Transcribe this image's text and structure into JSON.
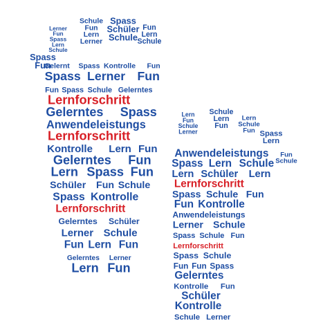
{
  "colors": {
    "background": "#ffffff",
    "primary_word": "#1f4ea3",
    "highlight_word": "#d81f26",
    "shadow": "#b8c4d8"
  },
  "left_foot": {
    "toes": [
      {
        "words": [
          "Lerner",
          "Fun",
          "Spass",
          "Lern",
          "Schule"
        ]
      },
      {
        "words": [
          "Schule",
          "Fun",
          "Lern",
          "Lerner"
        ]
      },
      {
        "words": [
          "Spass",
          "Schüler",
          "Schule"
        ]
      },
      {
        "words": [
          "Fun",
          "Lern",
          "Schule"
        ]
      },
      {
        "words": [
          "Spass",
          "Fun"
        ]
      }
    ],
    "rows": [
      {
        "words": [
          "Gelernt",
          "Spass",
          "Kontrolle",
          "Fun"
        ],
        "highlight": false
      },
      {
        "words": [
          "Spass",
          "Lerner",
          "Fun"
        ],
        "highlight": false
      },
      {
        "words": [
          "Fun",
          "Spass",
          "Schule",
          "Gelerntes"
        ],
        "highlight": false
      },
      {
        "words": [
          "Lernforschritt"
        ],
        "highlight": true
      },
      {
        "words": [
          "Gelerntes",
          "Spass"
        ],
        "highlight": false
      },
      {
        "words": [
          "Anwendeleistungs"
        ],
        "highlight": false
      },
      {
        "words": [
          "Lernforschritt"
        ],
        "highlight": true
      },
      {
        "words": [
          "Kontrolle",
          "Lern",
          "Fun"
        ],
        "highlight": false
      },
      {
        "words": [
          "Gelerntes",
          "Fun"
        ],
        "highlight": false
      },
      {
        "words": [
          "Lern",
          "Spass",
          "Fun"
        ],
        "highlight": false
      },
      {
        "words": [
          "Schüler",
          "Fun",
          "Schule"
        ],
        "highlight": false
      },
      {
        "words": [
          "Spass",
          "Kontrolle"
        ],
        "highlight": false
      },
      {
        "words": [
          "Lernforschritt"
        ],
        "highlight": true
      },
      {
        "words": [
          "Gelerntes",
          "Schüler"
        ],
        "highlight": false
      },
      {
        "words": [
          "Lerner",
          "Schule"
        ],
        "highlight": false
      },
      {
        "words": [
          "Fun",
          "Lern",
          "Fun"
        ],
        "highlight": false
      },
      {
        "words": [
          "Gelerntes",
          "Lerner"
        ],
        "highlight": false
      },
      {
        "words": [
          "Lern",
          "Fun"
        ],
        "highlight": false
      }
    ]
  },
  "right_foot": {
    "toes": [
      {
        "words": [
          "Lern",
          "Fun",
          "Schule",
          "Lerner"
        ]
      },
      {
        "words": [
          "Schule",
          "Lern",
          "Fun"
        ]
      },
      {
        "words": [
          "Lern",
          "Schule",
          "Fun"
        ]
      },
      {
        "words": [
          "Spass",
          "Lern"
        ]
      },
      {
        "words": [
          "Fun",
          "Schule"
        ]
      }
    ],
    "rows": [
      {
        "words": [
          "Anwendeleistungs"
        ],
        "highlight": false
      },
      {
        "words": [
          "Spass",
          "Lern",
          "Schule"
        ],
        "highlight": false
      },
      {
        "words": [
          "Lern",
          "Schüler",
          "Lern"
        ],
        "highlight": false
      },
      {
        "words": [
          "Lernforschritt"
        ],
        "highlight": true
      },
      {
        "words": [
          "Spass",
          "Schule",
          "Fun"
        ],
        "highlight": false
      },
      {
        "words": [
          "Fun",
          "Kontrolle"
        ],
        "highlight": false
      },
      {
        "words": [
          "Anwendeleistungs"
        ],
        "highlight": false
      },
      {
        "words": [
          "Lerner",
          "Schule"
        ],
        "highlight": false
      },
      {
        "words": [
          "Spass",
          "Schule",
          "Fun"
        ],
        "highlight": false
      },
      {
        "words": [
          "Lernforschritt"
        ],
        "highlight": true
      },
      {
        "words": [
          "Spass",
          "Schule"
        ],
        "highlight": false
      },
      {
        "words": [
          "Fun",
          "Fun",
          "Spass"
        ],
        "highlight": false
      },
      {
        "words": [
          "Gelerntes"
        ],
        "highlight": false
      },
      {
        "words": [
          "Kontrolle",
          "Fun"
        ],
        "highlight": false
      },
      {
        "words": [
          "Schüler"
        ],
        "highlight": false
      },
      {
        "words": [
          "Kontrolle"
        ],
        "highlight": false
      },
      {
        "words": [
          "Schule",
          "Lerner"
        ],
        "highlight": false
      }
    ]
  }
}
